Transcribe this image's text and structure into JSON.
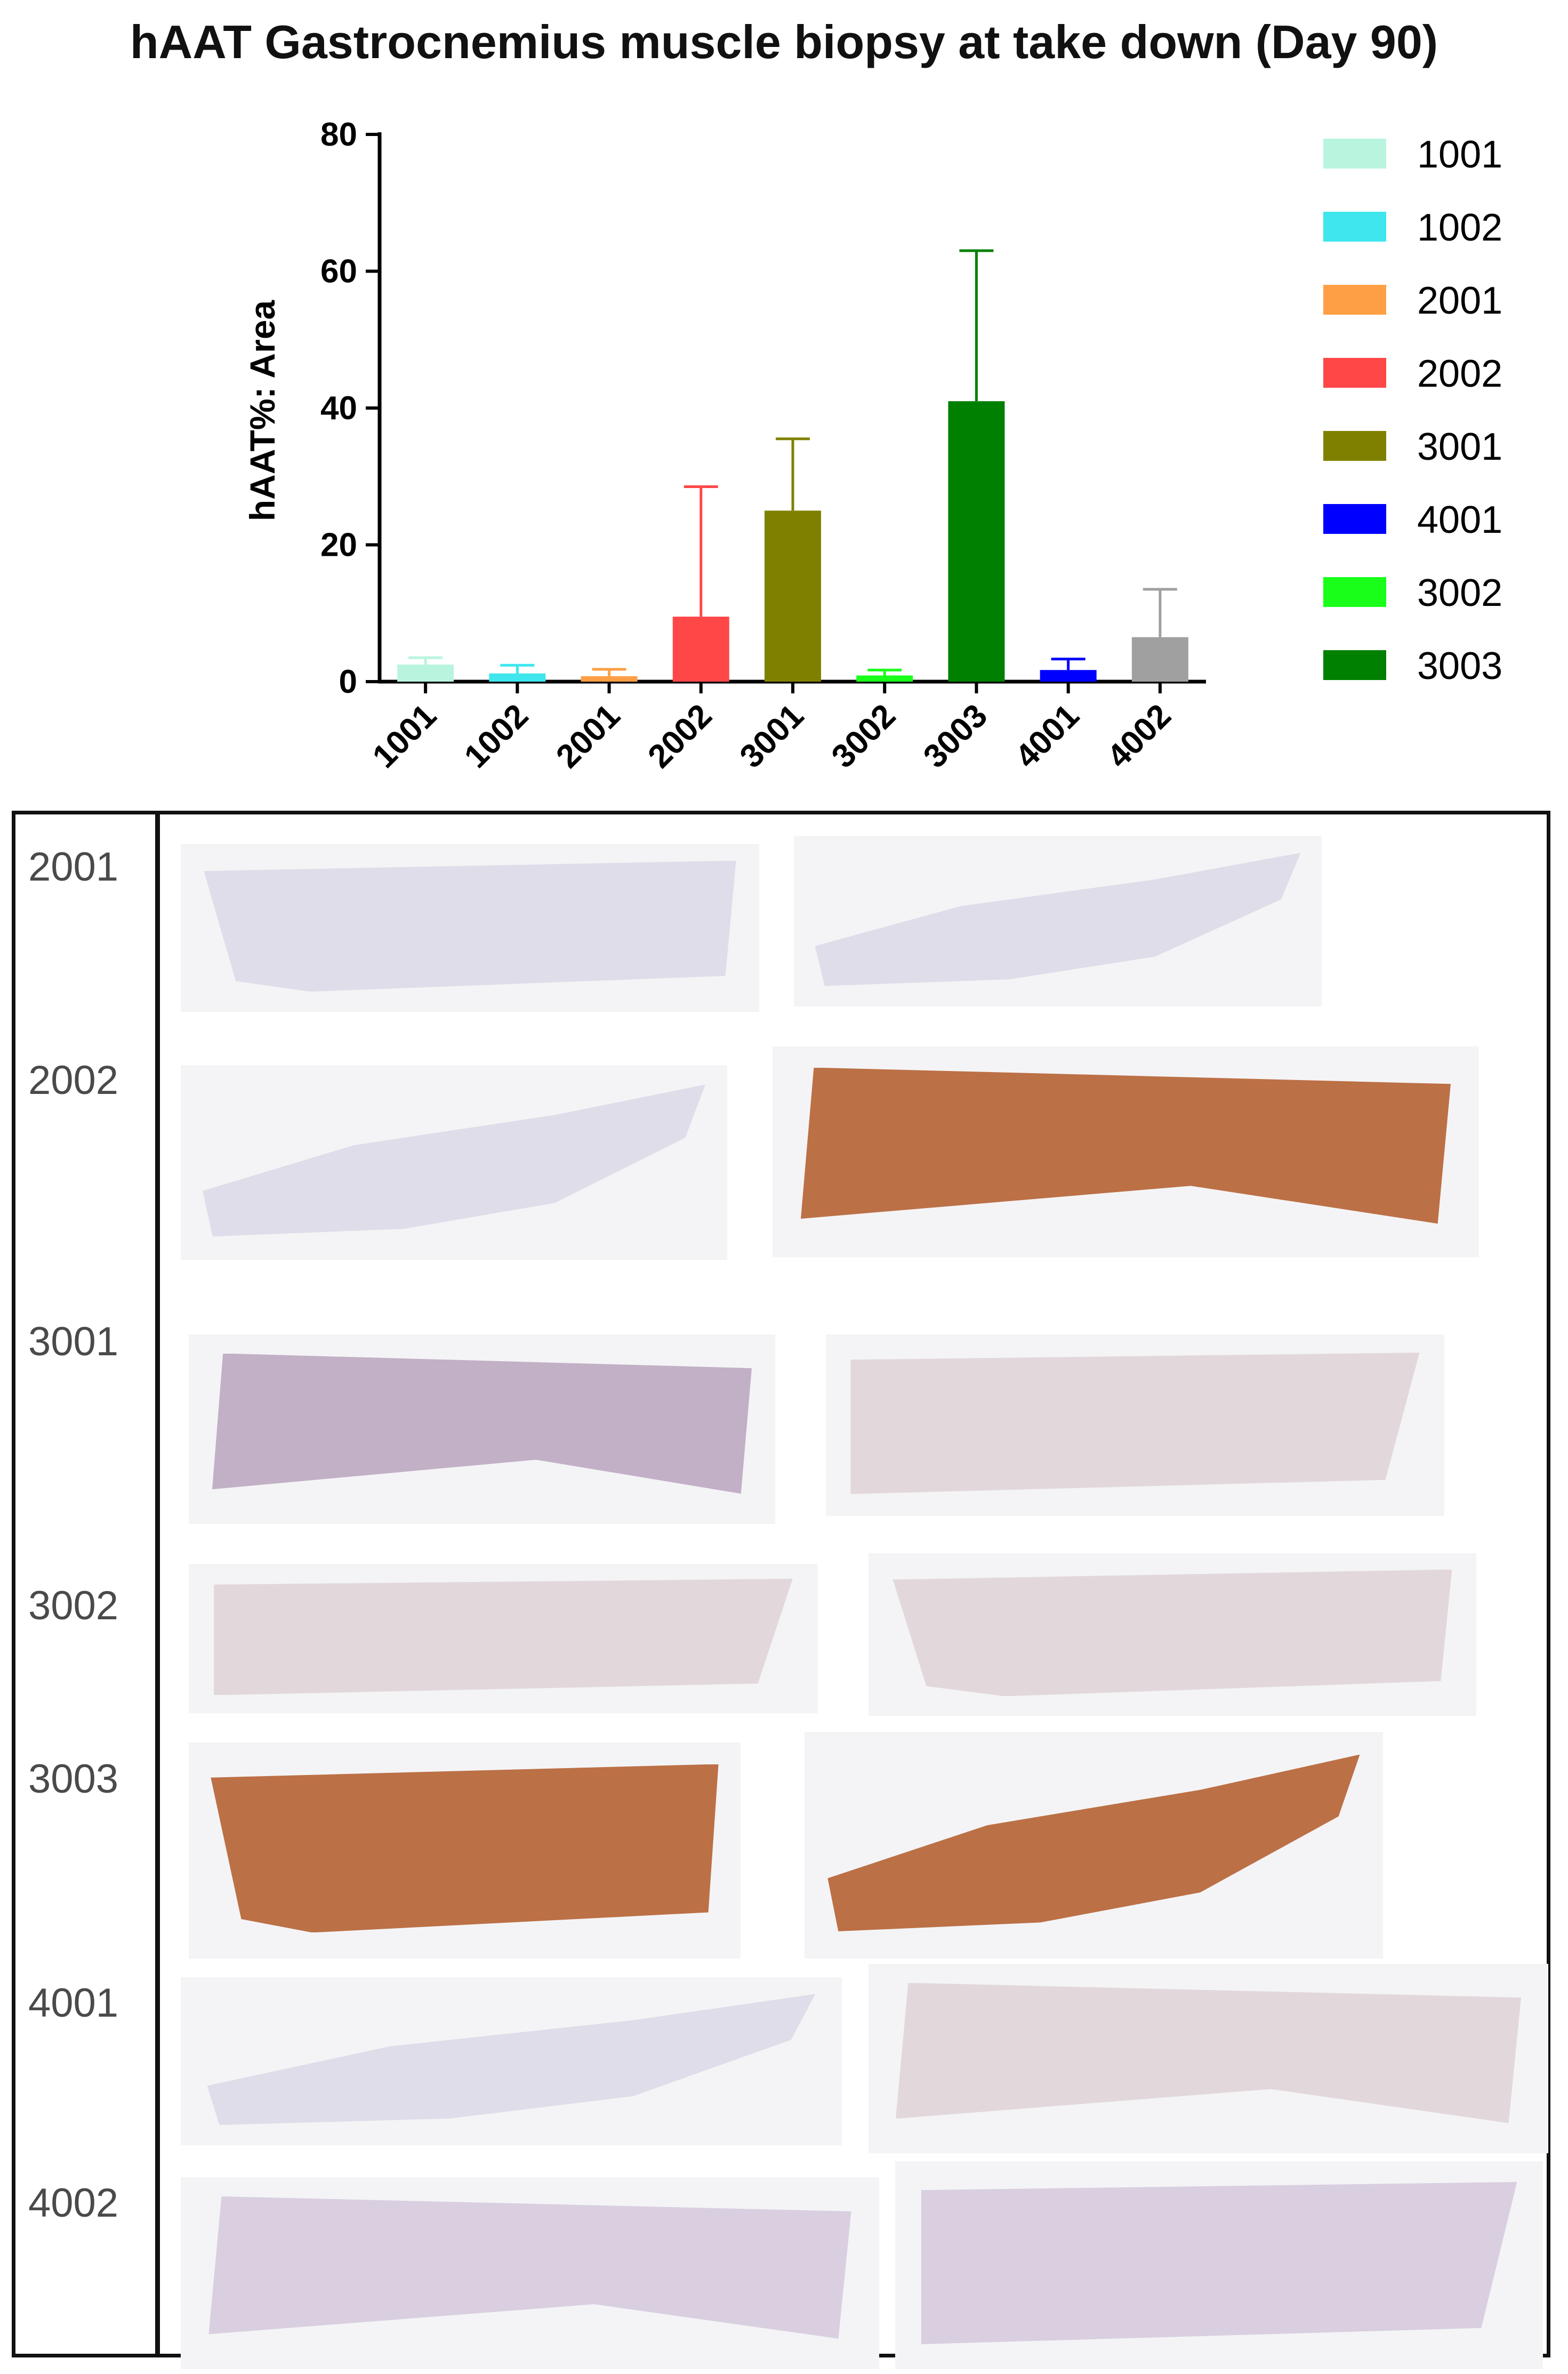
{
  "title": "hAAT Gastrocnemius muscle biopsy at take down (Day 90)",
  "chart_data": {
    "type": "bar",
    "title": "hAAT Gastrocnemius muscle biopsy at take down (Day 90)",
    "xlabel": "",
    "ylabel": "hAAT%: Area",
    "ylim": [
      0,
      80
    ],
    "yticks": [
      0,
      20,
      40,
      60,
      80
    ],
    "categories": [
      "1001",
      "1002",
      "2001",
      "2002",
      "3001",
      "3002",
      "3003",
      "4001",
      "4002"
    ],
    "values": [
      2.5,
      1.2,
      0.8,
      9.5,
      25.0,
      0.9,
      41.0,
      1.7,
      6.5
    ],
    "error_upper": [
      1.0,
      1.2,
      1.0,
      19.0,
      10.5,
      0.8,
      22.0,
      1.6,
      7.0
    ],
    "colors": [
      "#b9f5de",
      "#3fe6ee",
      "#ff9f45",
      "#ff4747",
      "#808000",
      "#19ff19",
      "#008000",
      "#0000ff",
      "#a0a0a0"
    ],
    "legend": [
      {
        "label": "1001",
        "color": "#b9f5de"
      },
      {
        "label": "1002",
        "color": "#3fe6ee"
      },
      {
        "label": "2001",
        "color": "#ff9f45"
      },
      {
        "label": "2002",
        "color": "#ff4747"
      },
      {
        "label": "3001",
        "color": "#808000"
      },
      {
        "label": "4001",
        "color": "#0000ff"
      },
      {
        "label": "3002",
        "color": "#19ff19"
      },
      {
        "label": "3003",
        "color": "#008000"
      }
    ],
    "legend_position": "right"
  },
  "histology": {
    "rows": [
      {
        "label": "2001",
        "stain": [
          "none",
          "none"
        ]
      },
      {
        "label": "2002",
        "stain": [
          "none",
          "strong"
        ]
      },
      {
        "label": "3001",
        "stain": [
          "mixed",
          "faint"
        ]
      },
      {
        "label": "3002",
        "stain": [
          "faint",
          "faint"
        ]
      },
      {
        "label": "3003",
        "stain": [
          "strong",
          "strong"
        ]
      },
      {
        "label": "4001",
        "stain": [
          "none",
          "faint"
        ]
      },
      {
        "label": "4002",
        "stain": [
          "light",
          "light"
        ]
      }
    ],
    "stain_colors": {
      "none": "#d9d8e6",
      "faint": "#ded2d6",
      "light": "#d3c8dc",
      "mixed": "#b9a3bd",
      "strong": "#b8683c"
    }
  }
}
